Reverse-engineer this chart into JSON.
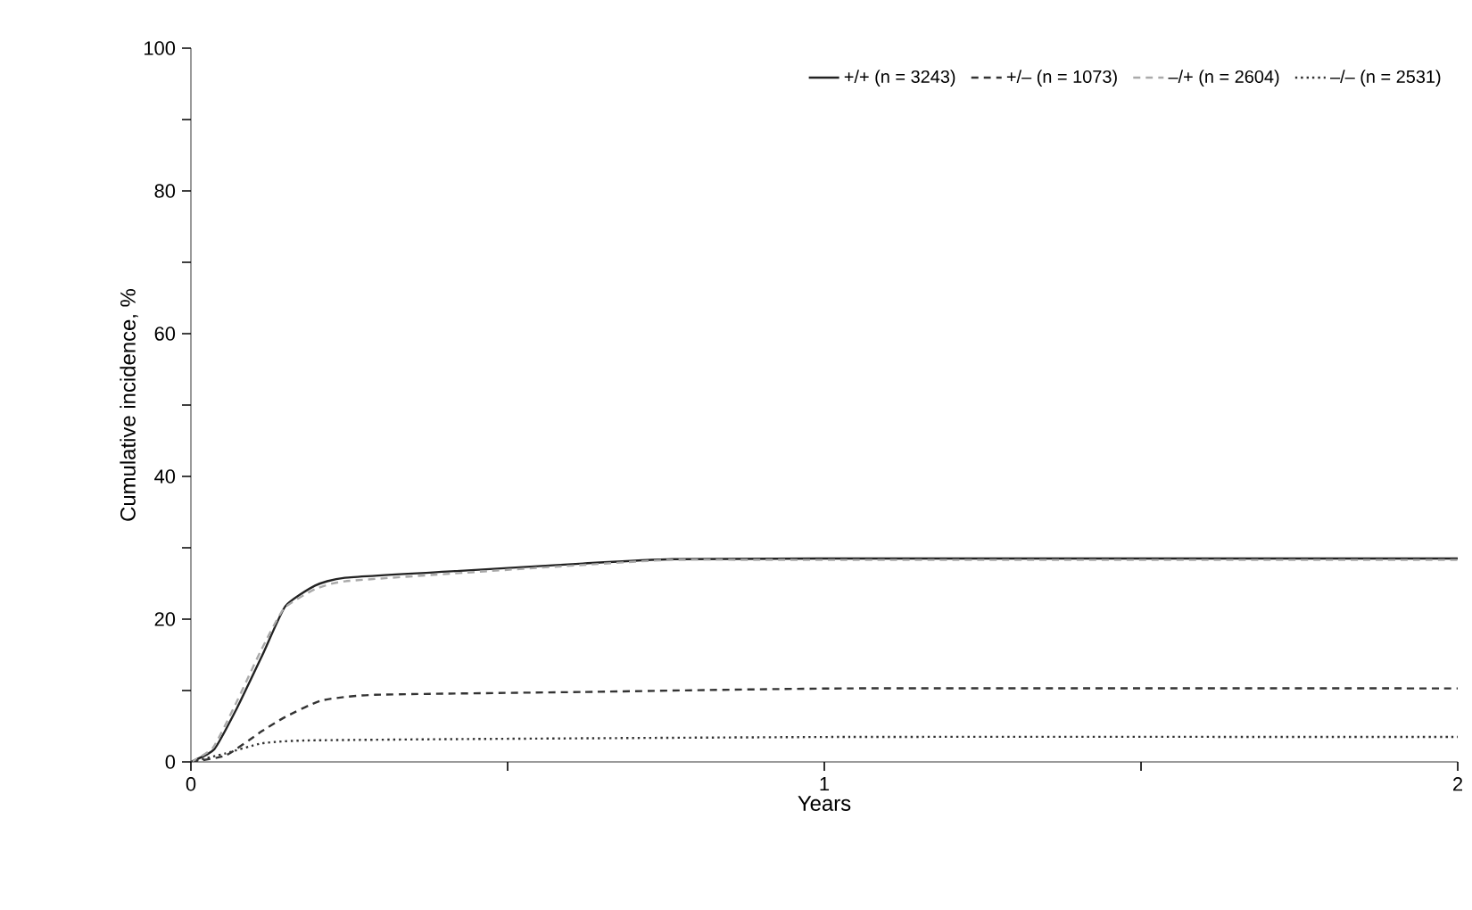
{
  "chart_data": {
    "type": "line",
    "xlabel": "Years",
    "ylabel": "Cumulative incidence, %",
    "xlim": [
      0,
      2
    ],
    "ylim": [
      0,
      100
    ],
    "xticks": [
      0,
      {
        "value": 0.5,
        "label": null
      },
      1,
      {
        "value": 1.5,
        "label": null
      },
      2
    ],
    "yticks": [
      0,
      {
        "value": 10,
        "label": null
      },
      20,
      {
        "value": 30,
        "label": null
      },
      40,
      {
        "value": 50,
        "label": null
      },
      60,
      {
        "value": 70,
        "label": null
      },
      80,
      {
        "value": 90,
        "label": null
      },
      100
    ],
    "grid": false,
    "legend": "top right",
    "series": [
      {
        "name": "+/+ (n = 3243)",
        "color": "#222222",
        "line_style": "solid",
        "x": [
          0,
          0.037,
          0.073,
          0.113,
          0.149,
          0.196,
          0.243,
          0.431,
          0.619,
          0.76,
          1.0,
          2.0
        ],
        "values": [
          0,
          1.8,
          7.6,
          15,
          21.8,
          24.7,
          25.8,
          26.8,
          27.8,
          28.4,
          28.5,
          28.5
        ]
      },
      {
        "name": "+/– (n = 1073)",
        "color": "#333333",
        "line_style": "dashed",
        "x": [
          0,
          0.055,
          0.112,
          0.149,
          0.206,
          0.29,
          0.62,
          1.04,
          2.0
        ],
        "values": [
          0,
          0.9,
          4.3,
          6.3,
          8.6,
          9.4,
          9.8,
          10.3,
          10.3
        ]
      },
      {
        "name": "–/+ (n = 2604)",
        "color": "#aaaaaa",
        "line_style": "dashed",
        "x": [
          0,
          0.035,
          0.07,
          0.11,
          0.147,
          0.196,
          0.243,
          0.431,
          0.619,
          0.76,
          1.0,
          2.0
        ],
        "values": [
          0,
          2.0,
          8.0,
          15.5,
          21.5,
          24.2,
          25.3,
          26.5,
          27.6,
          28.3,
          28.3,
          28.3
        ]
      },
      {
        "name": "–/– (n = 2531)",
        "color": "#333333",
        "line_style": "dotted",
        "x": [
          0,
          0.055,
          0.112,
          0.18,
          0.43,
          1.04,
          2.0
        ],
        "values": [
          0,
          1.2,
          2.6,
          3.0,
          3.2,
          3.5,
          3.5
        ]
      }
    ]
  }
}
